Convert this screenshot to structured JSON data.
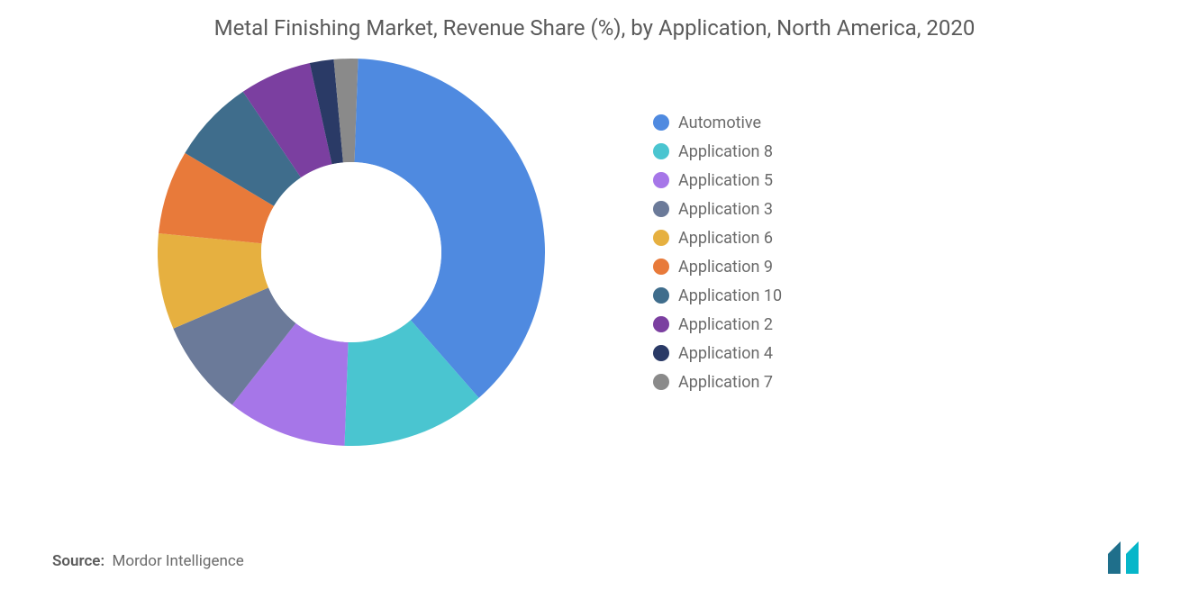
{
  "chart": {
    "type": "donut",
    "title": "Metal Finishing Market, Revenue Share (%), by Application, North America, 2020",
    "background_color": "#ffffff",
    "title_color": "#5a5a5a",
    "title_fontsize": 24,
    "legend_fontsize": 18,
    "legend_color": "#6a6a6a",
    "donut_outer_radius": 215,
    "donut_inner_radius": 100,
    "inner_hole_color": "#ffffff",
    "start_angle_deg": 2,
    "segments": [
      {
        "label": "Automotive",
        "value": 38.0,
        "color": "#4f8ae0"
      },
      {
        "label": "Application 8",
        "value": 12.0,
        "color": "#4ac5d0"
      },
      {
        "label": "Application 5",
        "value": 10.0,
        "color": "#a676e8"
      },
      {
        "label": "Application 3",
        "value": 8.0,
        "color": "#6b7a99"
      },
      {
        "label": "Application 6",
        "value": 8.0,
        "color": "#e6b040"
      },
      {
        "label": "Application 9",
        "value": 7.0,
        "color": "#e87a3a"
      },
      {
        "label": "Application 10",
        "value": 7.0,
        "color": "#3f6d8c"
      },
      {
        "label": "Application 2",
        "value": 6.0,
        "color": "#7b3fa0"
      },
      {
        "label": "Application 4",
        "value": 2.0,
        "color": "#2a3a66"
      },
      {
        "label": "Application 7",
        "value": 2.0,
        "color": "#8a8a8a"
      }
    ]
  },
  "footer": {
    "source_label": "Source:",
    "source_value": "Mordor Intelligence"
  },
  "logo": {
    "bar1_color": "#1f6f8b",
    "bar2_color": "#06b6c9"
  }
}
